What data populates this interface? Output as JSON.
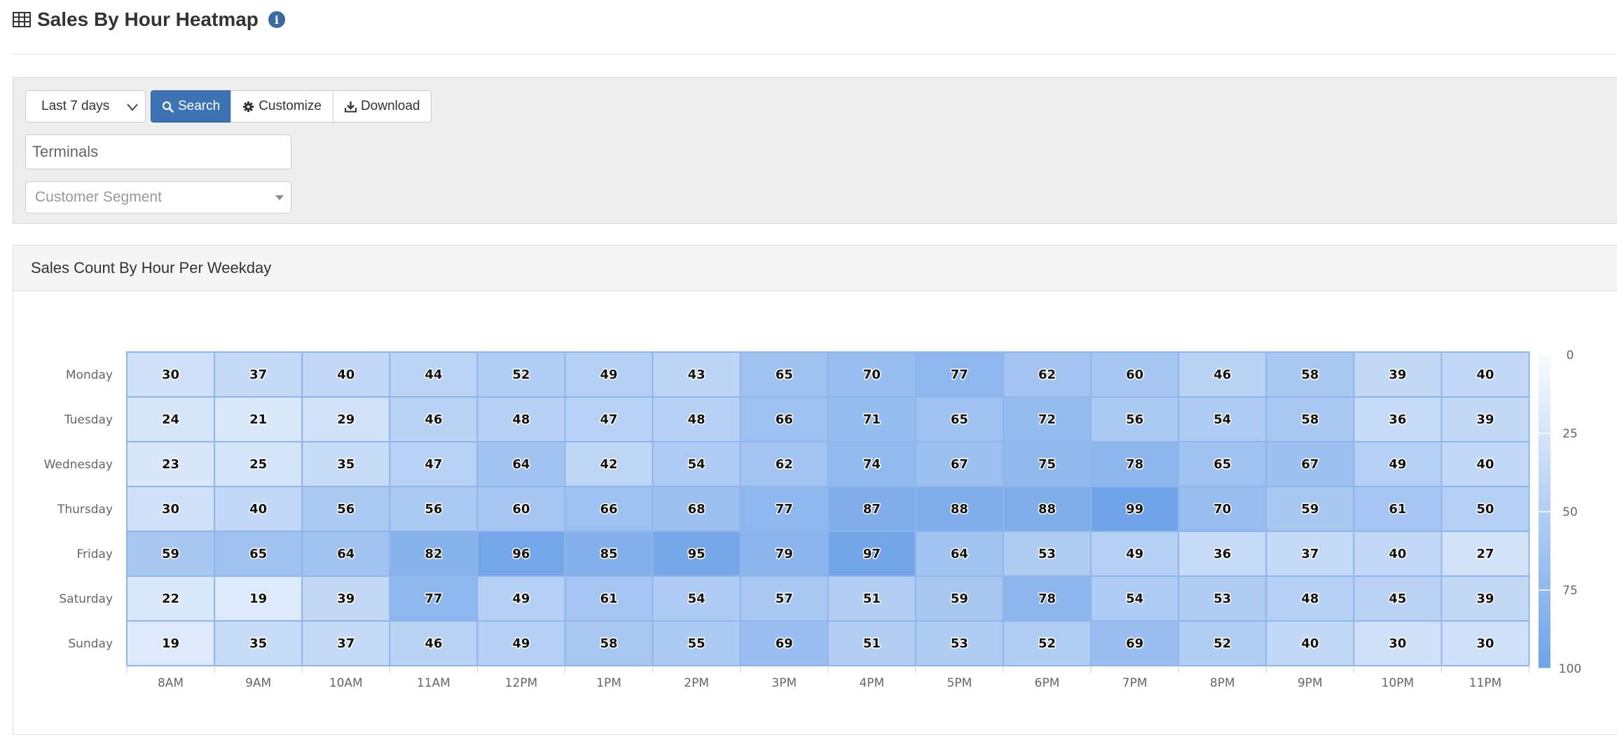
{
  "header": {
    "title": "Sales By Hour Heatmap",
    "title_icon": "table-grid-icon",
    "info_icon_glyph": "i"
  },
  "filters": {
    "range_value": "Last 7 days",
    "search_label": "Search",
    "customize_label": "Customize",
    "download_label": "Download",
    "terminals_placeholder": "Terminals",
    "segment_placeholder": "Customer Segment"
  },
  "panel": {
    "heading": "Sales Count By Hour Per Weekday"
  },
  "colors": {
    "low": "#f7fbff",
    "high": "#6fa3e8",
    "cell_border": "#8fb6ec",
    "accent": "#3d72b5"
  },
  "chart_data": {
    "type": "heatmap",
    "title": "Sales Count By Hour Per Weekday",
    "x": [
      "8AM",
      "9AM",
      "10AM",
      "11AM",
      "12PM",
      "1PM",
      "2PM",
      "3PM",
      "4PM",
      "5PM",
      "6PM",
      "7PM",
      "8PM",
      "9PM",
      "10PM",
      "11PM"
    ],
    "y": [
      "Monday",
      "Tuesday",
      "Wednesday",
      "Thursday",
      "Friday",
      "Saturday",
      "Sunday"
    ],
    "values": [
      [
        30,
        37,
        40,
        44,
        52,
        49,
        43,
        65,
        70,
        77,
        62,
        60,
        46,
        58,
        39,
        40
      ],
      [
        24,
        21,
        29,
        46,
        48,
        47,
        48,
        66,
        71,
        65,
        72,
        56,
        54,
        58,
        36,
        39
      ],
      [
        23,
        25,
        35,
        47,
        64,
        42,
        54,
        62,
        74,
        67,
        75,
        78,
        65,
        67,
        49,
        40
      ],
      [
        30,
        40,
        56,
        56,
        60,
        66,
        68,
        77,
        87,
        88,
        88,
        99,
        70,
        59,
        61,
        50
      ],
      [
        59,
        65,
        64,
        82,
        96,
        85,
        95,
        79,
        97,
        64,
        53,
        49,
        36,
        37,
        40,
        27
      ],
      [
        22,
        19,
        39,
        77,
        49,
        61,
        54,
        57,
        51,
        59,
        78,
        54,
        53,
        48,
        45,
        39
      ],
      [
        19,
        35,
        37,
        46,
        49,
        58,
        55,
        69,
        51,
        53,
        52,
        69,
        52,
        40,
        30,
        30
      ]
    ],
    "color_scale": {
      "min": 0,
      "max": 100,
      "ticks": [
        0,
        25,
        50,
        75,
        100
      ]
    },
    "legend_position": "right"
  }
}
